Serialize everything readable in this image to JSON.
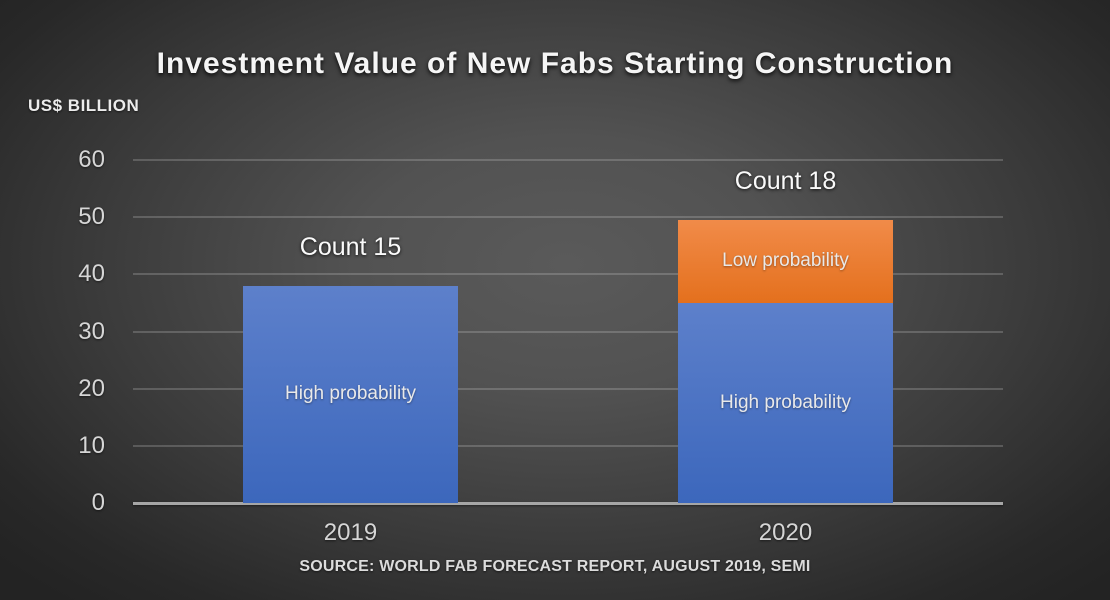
{
  "chart_data": {
    "type": "bar",
    "stacked": true,
    "title": "Investment Value of New Fabs Starting Construction",
    "unit": "US$ BILLION",
    "categories": [
      "2019",
      "2020"
    ],
    "series": [
      {
        "name": "High probability",
        "values": [
          38,
          35
        ],
        "color": "#4472c4",
        "color_top": "#5d80cb",
        "color_bottom": "#3c67bc"
      },
      {
        "name": "Low probability",
        "values": [
          0,
          14.5
        ],
        "color": "#ed7d31",
        "color_top": "#f18b49",
        "color_bottom": "#e4701d"
      }
    ],
    "totals": [
      38,
      49.5
    ],
    "annotations": [
      {
        "category": "2019",
        "text": "Count 15"
      },
      {
        "category": "2020",
        "text": "Count 18"
      }
    ],
    "yticks": [
      0,
      10,
      20,
      30,
      40,
      50,
      60
    ],
    "ylim": [
      0,
      60
    ],
    "grid": true,
    "legend": "none",
    "source": "SOURCE: WORLD FAB FORECAST REPORT, AUGUST 2019, SEMI"
  }
}
